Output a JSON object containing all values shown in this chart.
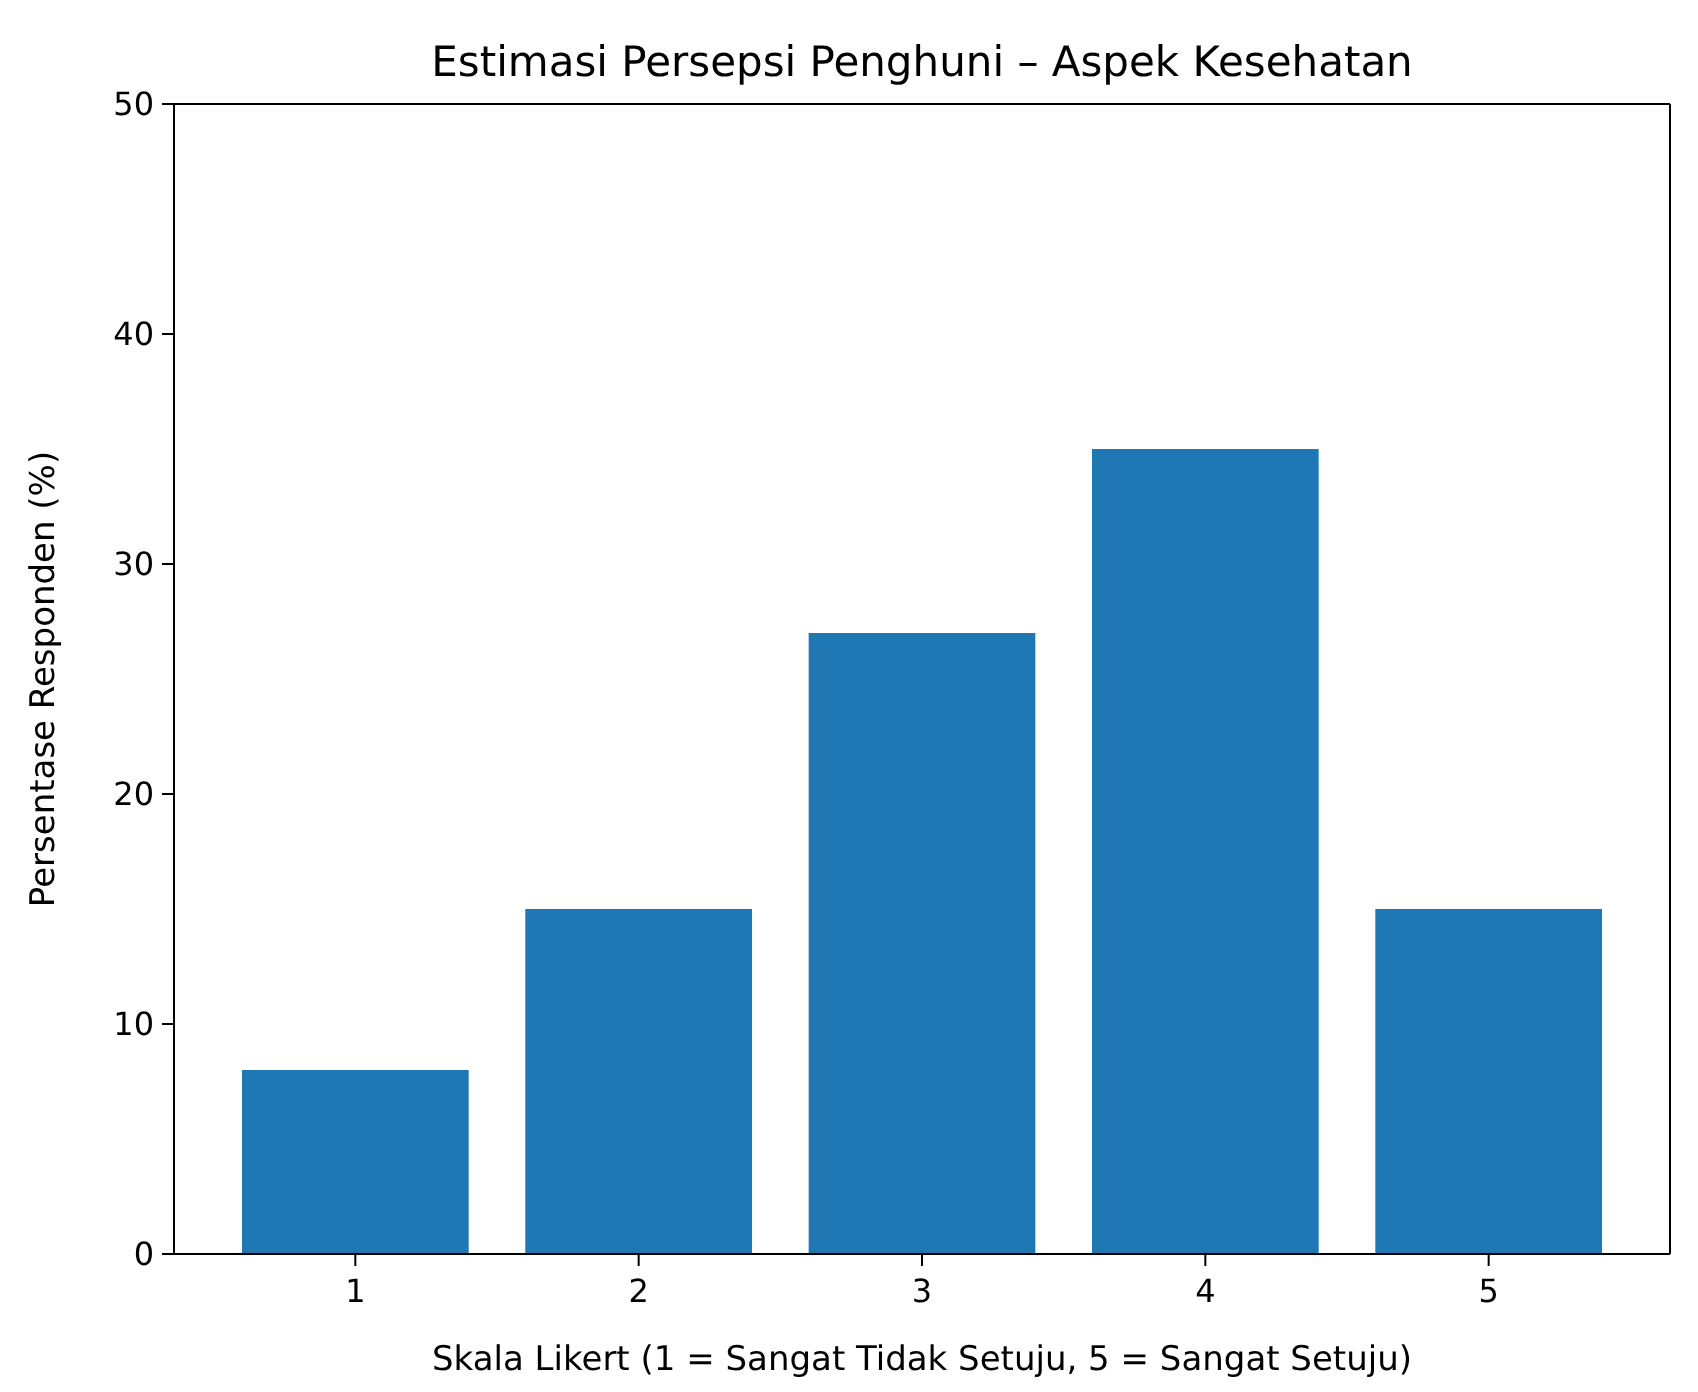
{
  "chart_data": {
    "type": "bar",
    "title": "Estimasi Persepsi Penghuni – Aspek Kesehatan",
    "xlabel": "Skala Likert (1 = Sangat Tidak Setuju, 5 = Sangat Setuju)",
    "ylabel": "Persentase Responden (%)",
    "categories": [
      "1",
      "2",
      "3",
      "4",
      "5"
    ],
    "values": [
      8,
      15,
      27,
      35,
      15
    ],
    "color": "#1f77b4",
    "ylim": [
      0,
      50
    ],
    "yticks": [
      0,
      10,
      20,
      30,
      40,
      50
    ]
  }
}
